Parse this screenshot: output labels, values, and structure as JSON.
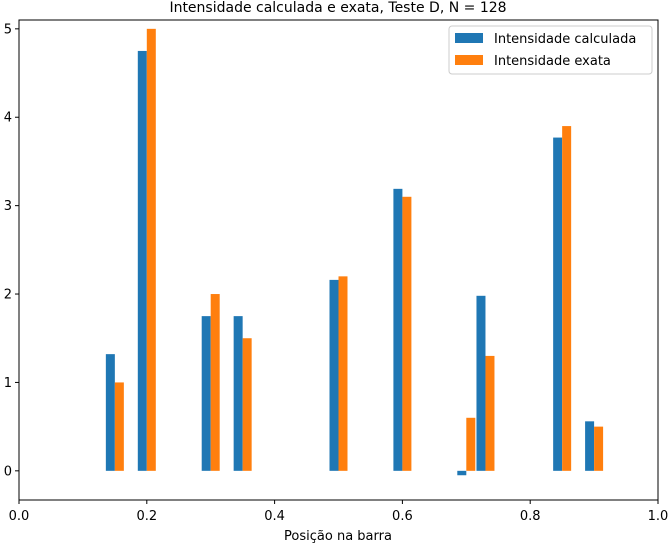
{
  "chart_data": {
    "type": "bar",
    "title": "Intensidade calculada e exata, Teste D, N = 128",
    "xlabel": "Posição na barra",
    "ylabel": "",
    "xlim": [
      0.0,
      1.0
    ],
    "ylim": [
      -0.33,
      5.1
    ],
    "xticks": [
      "0.0",
      "0.2",
      "0.4",
      "0.6",
      "0.8",
      "1.0"
    ],
    "yticks": [
      "0",
      "1",
      "2",
      "3",
      "4",
      "5"
    ],
    "x": [
      0.15,
      0.2,
      0.3,
      0.35,
      0.5,
      0.6,
      0.7,
      0.73,
      0.85,
      0.9
    ],
    "series": [
      {
        "name": "Intensidade calculada",
        "color": "#1f77b4",
        "values": [
          1.32,
          4.75,
          1.75,
          1.75,
          2.16,
          3.19,
          -0.05,
          1.98,
          3.77,
          0.56
        ]
      },
      {
        "name": "Intensidade exata",
        "color": "#ff7f0e",
        "values": [
          1.0,
          5.0,
          2.0,
          1.5,
          2.2,
          3.1,
          0.6,
          1.3,
          3.9,
          0.5
        ]
      }
    ],
    "legend": "top-right",
    "grid": false
  }
}
